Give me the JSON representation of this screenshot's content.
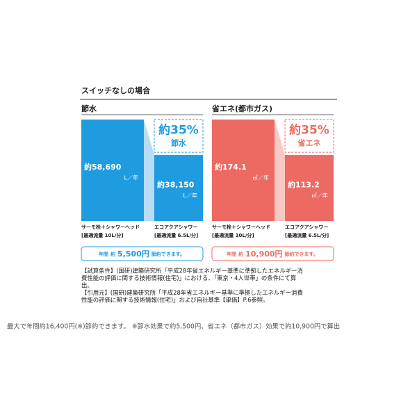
{
  "title": "スイッチなしの場合",
  "chart_data": [
    {
      "type": "bar",
      "title": "節水",
      "categories": [
        "サーモ栓＋シャワーヘッド",
        "エコアクアシャワー"
      ],
      "category_notes": [
        "[最適流量 10L/分]",
        "[最適流量 6.5L/分]"
      ],
      "values": [
        58690,
        38150
      ],
      "value_labels": [
        "約58,690",
        "約38,150"
      ],
      "unit": "L／年",
      "color": "#1f9ce0",
      "light_color": "#b7dcf3",
      "reduction": "約35%",
      "reduction_text": "節水",
      "saving": [
        "年間",
        "約",
        "5,500円",
        "節約できます。"
      ]
    },
    {
      "type": "bar",
      "title": "省エネ(都市ガス)",
      "categories": [
        "サーモ栓＋シャワーヘッド",
        "エコアクアシャワー"
      ],
      "category_notes": [
        "[最適流量 10L/分]",
        "[最適流量 6.5L/分]"
      ],
      "values": [
        174.1,
        113.2
      ],
      "value_labels": [
        "約174.1",
        "約113.2"
      ],
      "unit": "㎥／年",
      "color": "#ec6a62",
      "light_color": "#f7c8c4",
      "reduction": "約35%",
      "reduction_text": "省エネ",
      "saving": [
        "年間",
        "約",
        "10,900円",
        "節約できます。"
      ]
    }
  ],
  "notes": [
    "【試算条件】(国研)建築研究所「平成28年省エネルギー基準に準拠したエネルギー消",
    "費性能の評価に関する技術情報(住宅)」における、「東京・4人世帯」の条件にて算",
    "出。",
    "【引用元】(国研)建築研究所「平成28年省エネルギー基準に準拠したエネルギー消費",
    "性能の評価に関する技術情報(住宅)」および自社基準【単価】P.6参照。"
  ],
  "footer": "最大で年間約16,400円(※)節約できます。 ※節水効果で約5,500円、省エネ（都市ガス）効果で約10,900円で算出"
}
